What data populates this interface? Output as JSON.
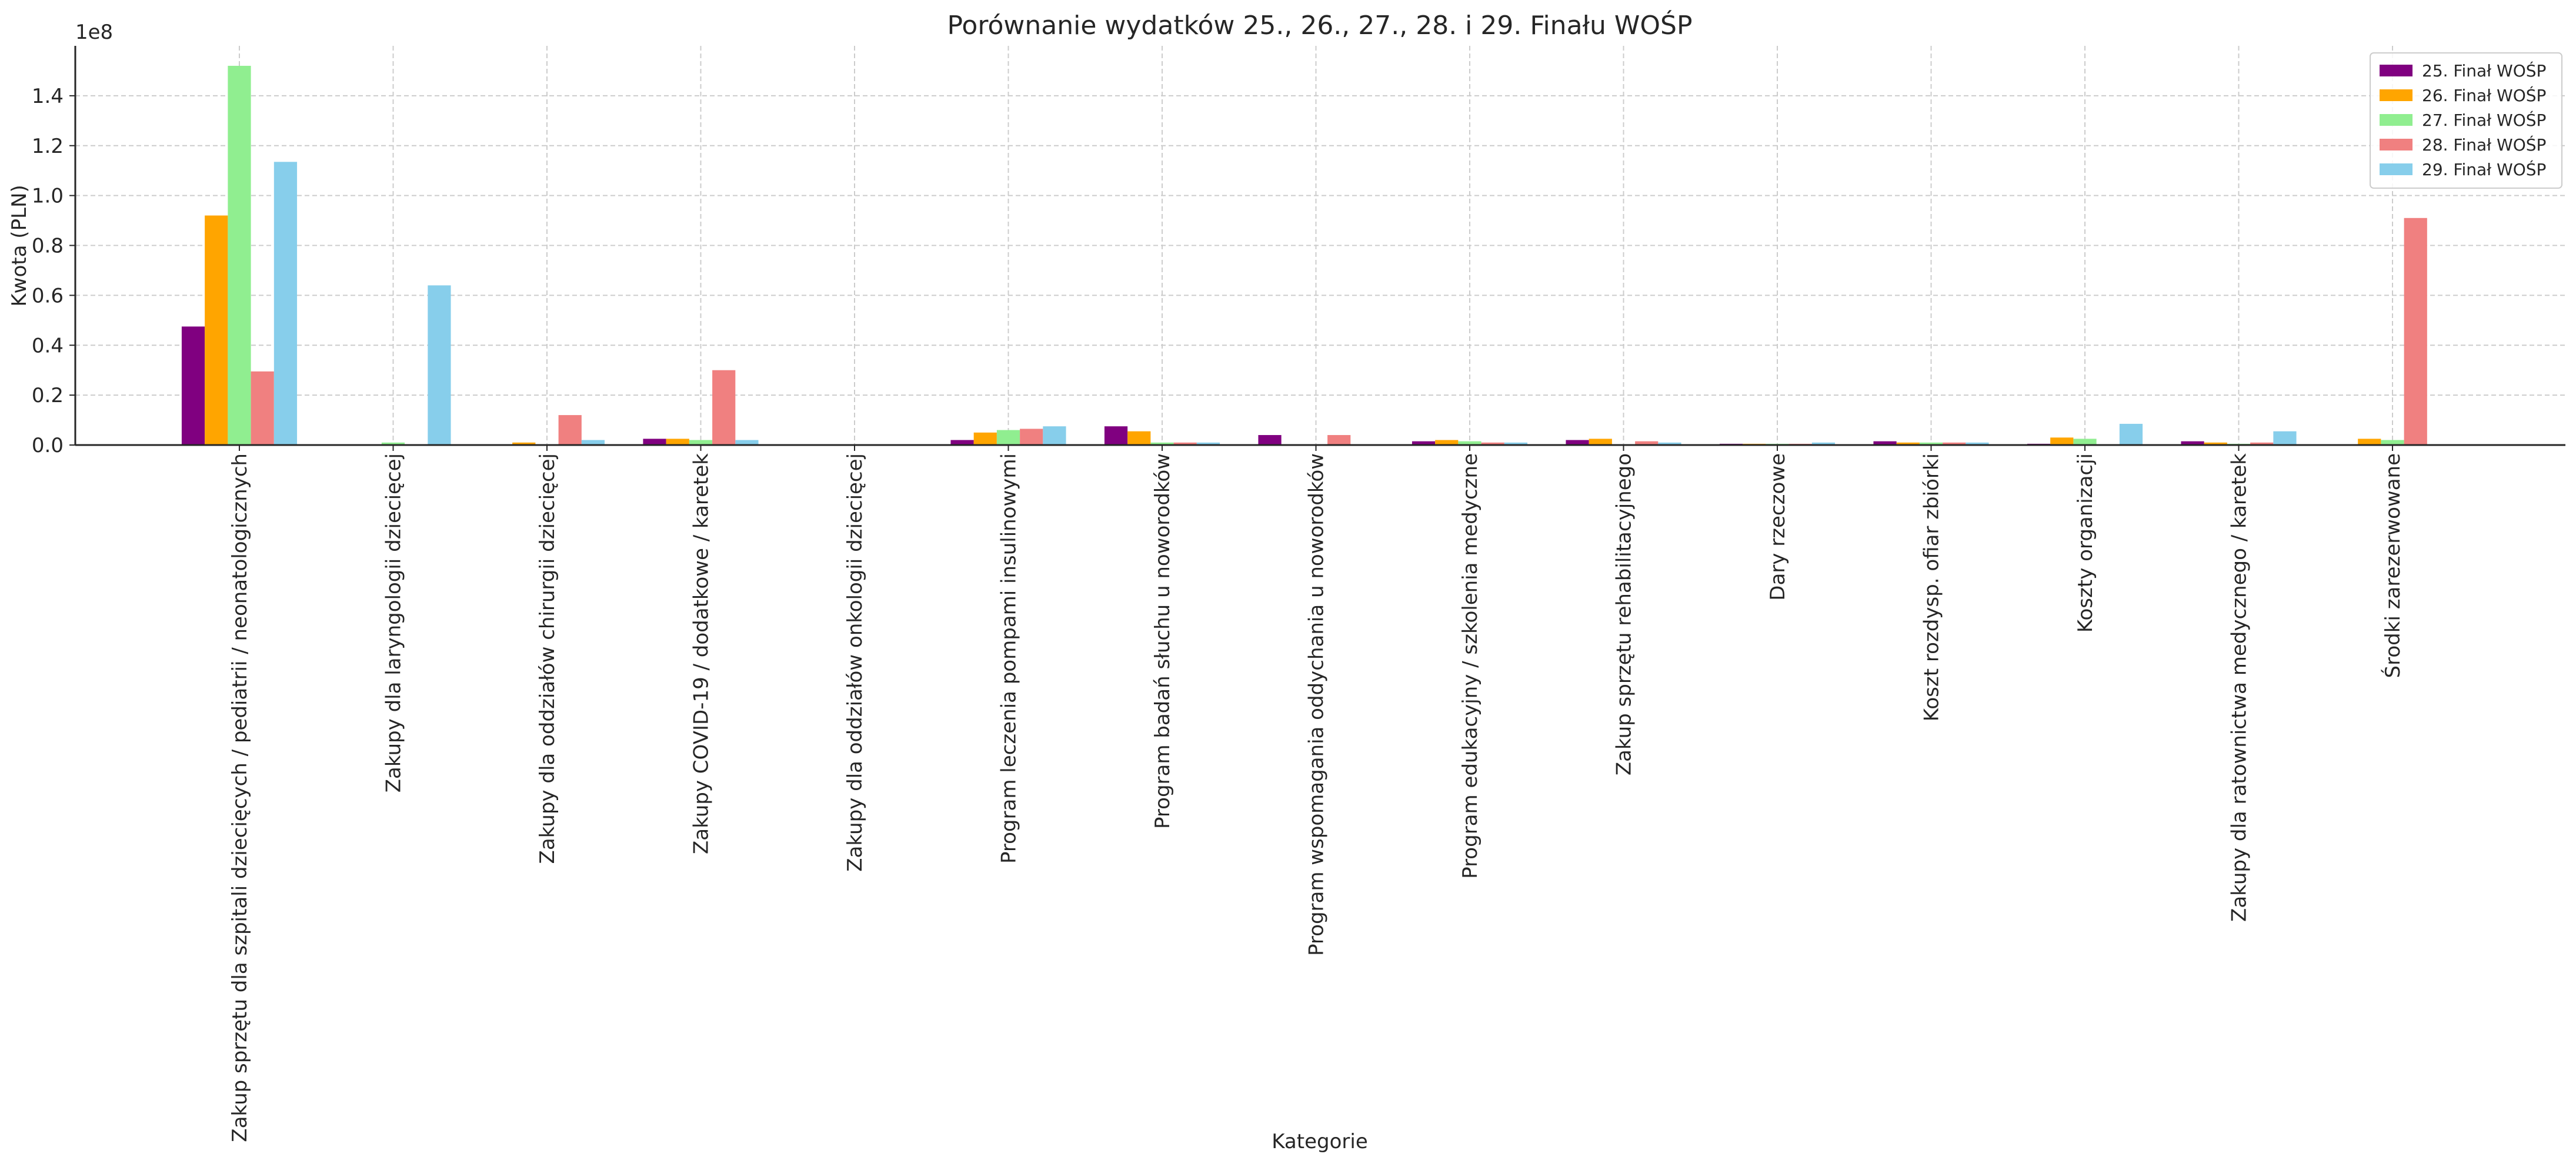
{
  "chart_data": {
    "type": "bar",
    "title": "Porównanie wydatków 25., 26., 27., 28. i 29. Finału WOŚP",
    "xlabel": "Kategorie",
    "ylabel": "Kwota (PLN)",
    "y_multiplier_label": "1e8",
    "ylim": [
      0,
      160000000
    ],
    "y_ticks": [
      {
        "value": 0,
        "label": "0.0"
      },
      {
        "value": 20000000,
        "label": "0.2"
      },
      {
        "value": 40000000,
        "label": "0.4"
      },
      {
        "value": 60000000,
        "label": "0.6"
      },
      {
        "value": 80000000,
        "label": "0.8"
      },
      {
        "value": 100000000,
        "label": "1.0"
      },
      {
        "value": 120000000,
        "label": "1.2"
      },
      {
        "value": 140000000,
        "label": "1.4"
      }
    ],
    "grid": true,
    "legend_position": "top-right",
    "categories": [
      "Zakup sprzętu dla szpitali dziecięcych / pediatrii / neonatologicznych",
      "Zakupy dla laryngologii dziecięcej",
      "Zakupy dla oddziałów chirurgii dziecięcej",
      "Zakupy COVID-19 / dodatkowe / karetek",
      "Zakupy dla oddziałów onkologii dziecięcej",
      "Program leczenia pompami insulinowymi",
      "Program badań słuchu u noworodków",
      "Program wspomagania oddychania u noworodków",
      "Program edukacyjny / szkolenia medyczne",
      "Zakup sprzętu rehabilitacyjnego",
      "Dary rzeczowe",
      "Koszt rozdysp. ofiar zbiórki",
      "Koszty organizacji",
      "Zakupy dla ratownictwa medycznego / karetek",
      "Środki zarezerwowane"
    ],
    "series": [
      {
        "name": "25. Finał WOŚP",
        "color": "#800080",
        "values": [
          47500000,
          0,
          0,
          2500000,
          0,
          2000000,
          7500000,
          4000000,
          1500000,
          2000000,
          500000,
          1500000,
          500000,
          1500000,
          0
        ]
      },
      {
        "name": "26. Finał WOŚP",
        "color": "#FFA500",
        "values": [
          92000000,
          0,
          1000000,
          2500000,
          0,
          5000000,
          5500000,
          0,
          2000000,
          2500000,
          500000,
          1000000,
          3000000,
          1000000,
          2500000
        ]
      },
      {
        "name": "27. Finał WOŚP",
        "color": "#90EE90",
        "values": [
          152000000,
          1000000,
          0,
          2000000,
          0,
          6000000,
          1000000,
          0,
          1500000,
          0,
          500000,
          1000000,
          2500000,
          500000,
          2000000
        ]
      },
      {
        "name": "28. Finał WOŚP",
        "color": "#F08080",
        "values": [
          29500000,
          0,
          12000000,
          30000000,
          0,
          6500000,
          1000000,
          4000000,
          1000000,
          1500000,
          500000,
          1000000,
          0,
          1000000,
          91000000
        ]
      },
      {
        "name": "29. Finał WOŚP",
        "color": "#87CEEB",
        "values": [
          113500000,
          64000000,
          2000000,
          2000000,
          0,
          7500000,
          1000000,
          0,
          1000000,
          1000000,
          1000000,
          1000000,
          8500000,
          5500000,
          0
        ]
      }
    ]
  }
}
